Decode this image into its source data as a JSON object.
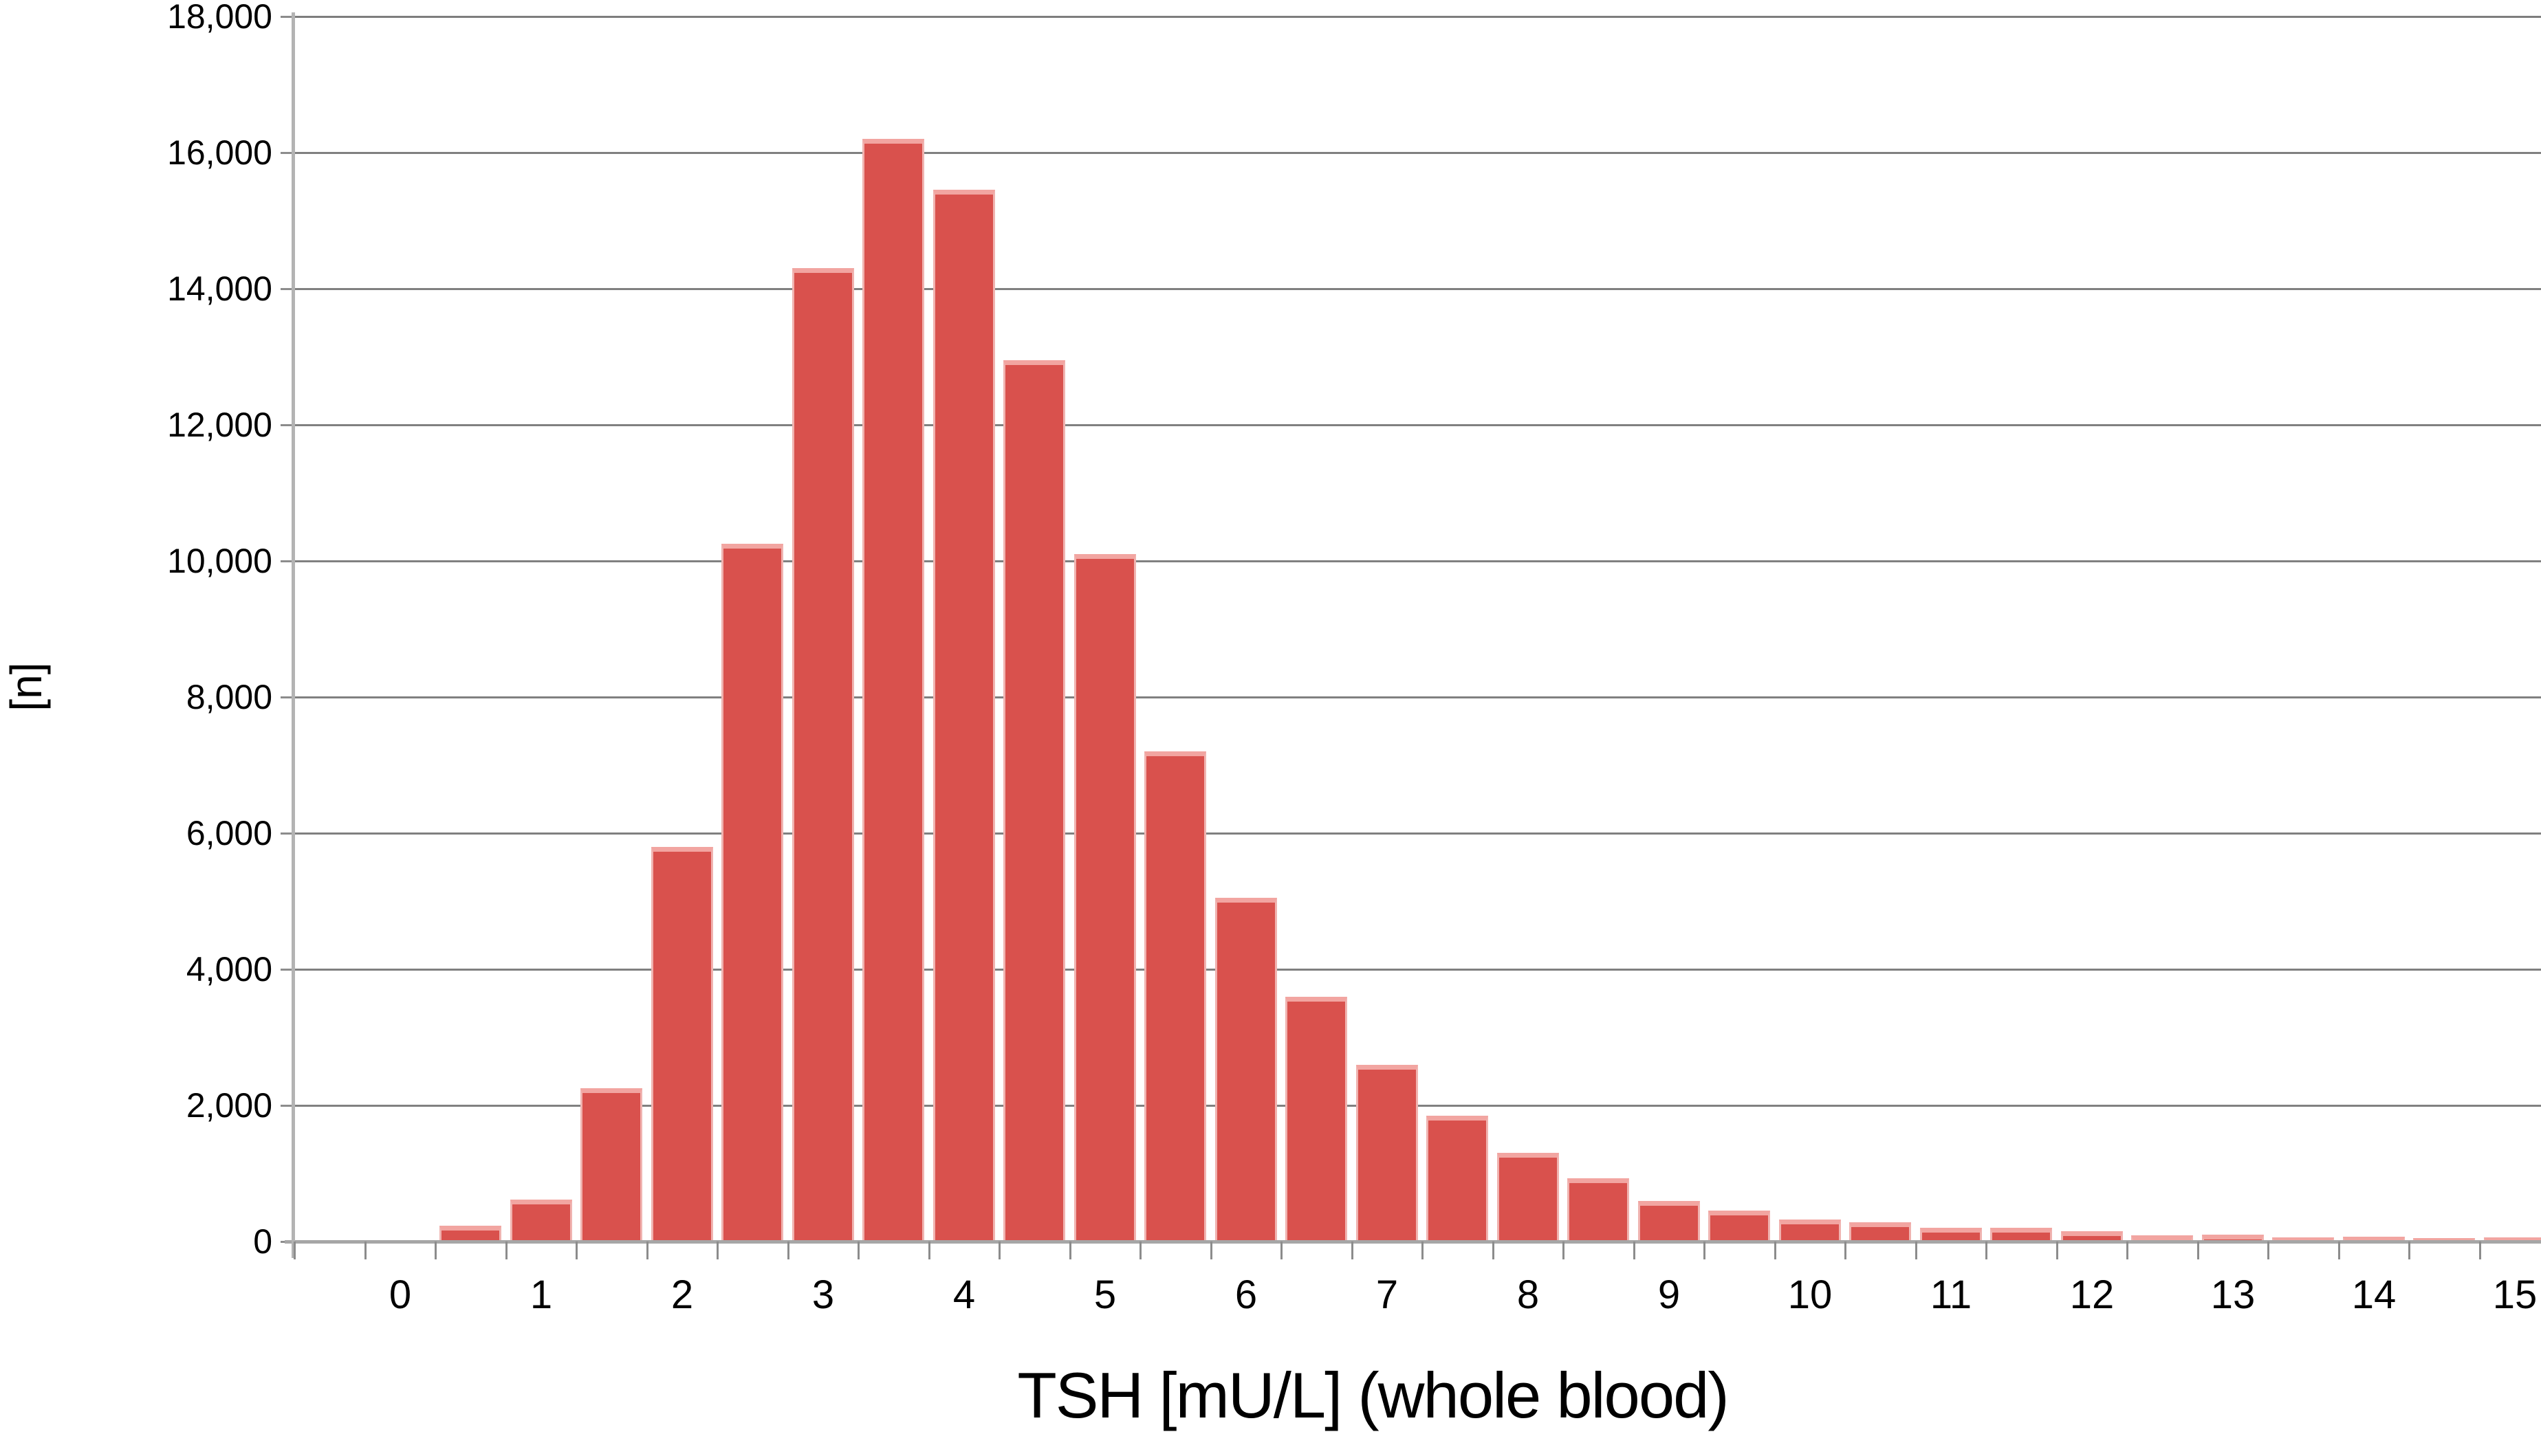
{
  "chart_data": {
    "type": "bar",
    "subtype": "histogram",
    "title": "",
    "xlabel": "TSH [mU/L] (whole blood)",
    "ylabel": "[n]",
    "bin_width": 0.5,
    "categories": [
      0.5,
      1.0,
      1.5,
      2.0,
      2.5,
      3.0,
      3.5,
      4.0,
      4.5,
      5.0,
      5.5,
      6.0,
      6.5,
      7.0,
      7.5,
      8.0,
      8.5,
      9.0,
      9.5,
      10.0,
      10.5,
      11.0,
      11.5,
      12.0,
      12.5,
      13.0,
      13.5,
      14.0,
      14.5,
      15.0
    ],
    "values": [
      230,
      620,
      2250,
      5800,
      10250,
      14300,
      16200,
      15450,
      12950,
      10100,
      7200,
      5050,
      3600,
      2600,
      1850,
      1300,
      930,
      600,
      450,
      320,
      285,
      200,
      205,
      150,
      95,
      100,
      65,
      70,
      55,
      60
    ],
    "x_tick_labels": [
      "0",
      "1",
      "2",
      "3",
      "4",
      "5",
      "6",
      "7",
      "8",
      "9",
      "10",
      "11",
      "12",
      "13",
      "14",
      "15"
    ],
    "y_tick_labels": [
      "0",
      "2,000",
      "4,000",
      "6,000",
      "8,000",
      "10,000",
      "12,000",
      "14,000",
      "16,000",
      "18,000"
    ],
    "ylim": [
      0,
      18000
    ],
    "y_tick_step": 2000,
    "xlim_note": "x axis runs slightly past 15; minor ticks every 0.5",
    "grid": "horizontal gridlines on",
    "legend": "none",
    "colors": {
      "bar_fill": "#d9514d",
      "bar_top_highlight": "#f2a5a1",
      "bar_side_highlight": "#f0b3b0",
      "gridline": "#808080",
      "axis_line": "#a6a6a6",
      "tick": "#8c8c8c",
      "background": "#ffffff",
      "text": "#000000"
    }
  }
}
